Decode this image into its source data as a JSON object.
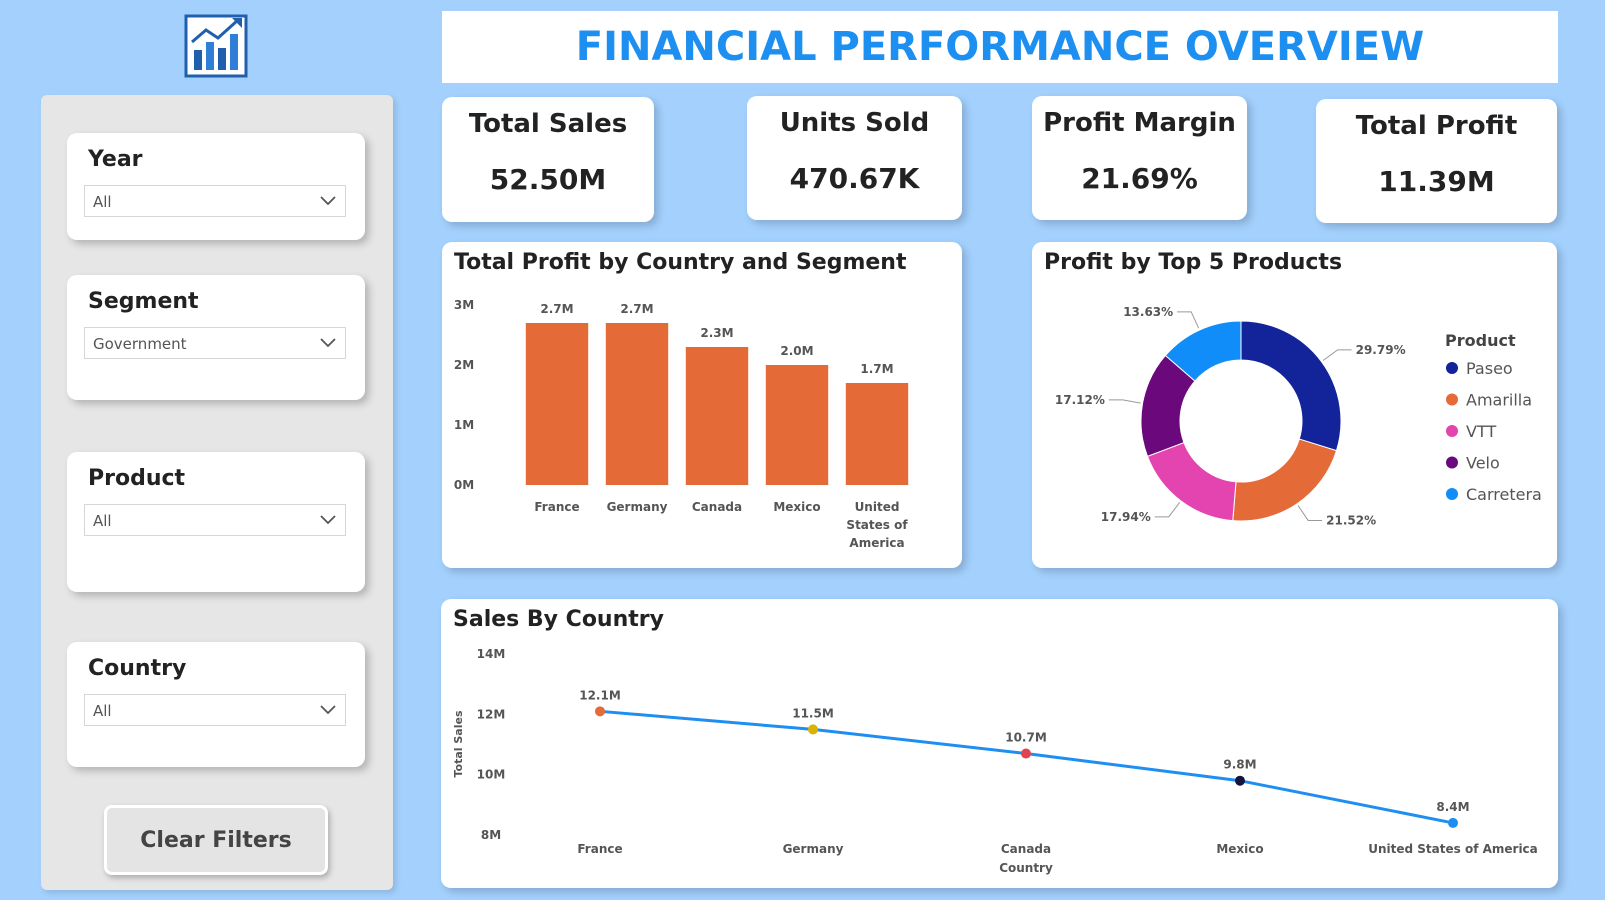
{
  "header": {
    "title": "FINANCIAL PERFORMANCE OVERVIEW"
  },
  "filters": {
    "year": {
      "label": "Year",
      "value": "All"
    },
    "segment": {
      "label": "Segment",
      "value": "Government"
    },
    "product": {
      "label": "Product",
      "value": "All"
    },
    "country": {
      "label": "Country",
      "value": "All"
    },
    "clear_label": "Clear Filters"
  },
  "kpis": {
    "total_sales": {
      "label": "Total Sales",
      "value": "52.50M"
    },
    "units_sold": {
      "label": "Units Sold",
      "value": "470.67K"
    },
    "profit_margin": {
      "label": "Profit Margin",
      "value": "21.69%"
    },
    "total_profit": {
      "label": "Total Profit",
      "value": "11.39M"
    }
  },
  "colors": {
    "background": "#a3d0fd",
    "title": "#1d8ff0",
    "bar": "#e46a38",
    "line": "#1f8ef1"
  },
  "icons": {
    "logo": "bar-chart-trend-icon",
    "dropdown": "chevron-down-icon"
  },
  "chart_data": [
    {
      "id": "profit_by_country",
      "type": "bar",
      "title": "Total Profit by Country and Segment",
      "categories": [
        "France",
        "Germany",
        "Canada",
        "Mexico",
        "United States of America"
      ],
      "category_lines": [
        [
          "France"
        ],
        [
          "Germany"
        ],
        [
          "Canada"
        ],
        [
          "Mexico"
        ],
        [
          "United",
          "States of",
          "America"
        ]
      ],
      "values": [
        2.7,
        2.7,
        2.3,
        2.0,
        1.7
      ],
      "data_labels": [
        "2.7M",
        "2.7M",
        "2.3M",
        "2.0M",
        "1.7M"
      ],
      "yticks": [
        "0M",
        "1M",
        "2M",
        "3M"
      ],
      "ylim": [
        0,
        3
      ],
      "unit": "M",
      "color": "#e46a38",
      "grid": false
    },
    {
      "id": "profit_by_top5",
      "type": "pie",
      "title": "Profit by Top 5 Products",
      "donut": true,
      "legend_title": "Product",
      "legend_position": "right",
      "slices": [
        {
          "label": "Paseo",
          "value": 29.79,
          "text": "29.79%",
          "color": "#13239a"
        },
        {
          "label": "Amarilla",
          "value": 21.52,
          "text": "21.52%",
          "color": "#e46a38"
        },
        {
          "label": "VTT",
          "value": 17.94,
          "text": "17.94%",
          "color": "#e344af"
        },
        {
          "label": "Velo",
          "value": 17.12,
          "text": "17.12%",
          "color": "#6b087c"
        },
        {
          "label": "Carretera",
          "value": 13.63,
          "text": "13.63%",
          "color": "#118dfa"
        }
      ]
    },
    {
      "id": "sales_by_country",
      "type": "line",
      "title": "Sales By Country",
      "xlabel": "Country",
      "ylabel": "Total Sales",
      "x": [
        "France",
        "Germany",
        "Canada",
        "Mexico",
        "United States of America"
      ],
      "values": [
        12.1,
        11.5,
        10.7,
        9.8,
        8.4
      ],
      "data_labels": [
        "12.1M",
        "11.5M",
        "10.7M",
        "9.8M",
        "8.4M"
      ],
      "point_colors": [
        "#e46a38",
        "#d9b300",
        "#e0454f",
        "#14143f",
        "#1f8ef1"
      ],
      "line_color": "#1f8ef1",
      "yticks": [
        "8M",
        "10M",
        "12M",
        "14M"
      ],
      "ylim": [
        8,
        14
      ],
      "grid": false
    }
  ]
}
